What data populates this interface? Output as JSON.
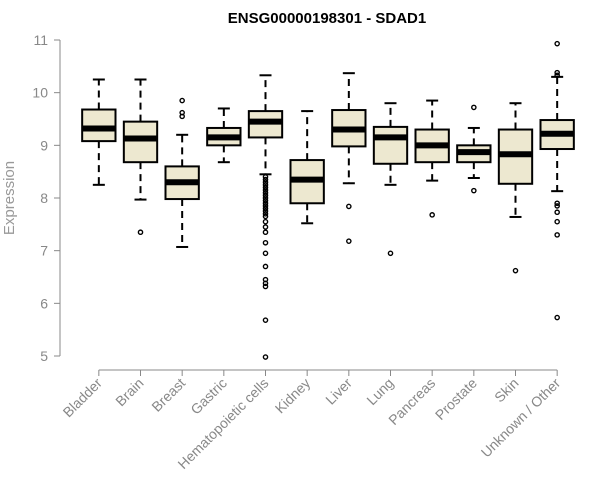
{
  "chart_data": {
    "type": "boxplot",
    "title": "ENSG00000198301 - SDAD1",
    "ylabel": "Expression",
    "xlabel": "",
    "ylim": [
      5,
      11
    ],
    "yticks": [
      5,
      6,
      7,
      8,
      9,
      10,
      11
    ],
    "grid": false,
    "box_fill": "#ede8d0",
    "box_stroke": "#000000",
    "axis_color": "#888888",
    "categories": [
      "Bladder",
      "Brain",
      "Breast",
      "Gastric",
      "Hematopoietic cells",
      "Kidney",
      "Liver",
      "Lung",
      "Pancreas",
      "Prostate",
      "Skin",
      "Unknown / Other"
    ],
    "boxes": [
      {
        "whisker_low": 8.25,
        "q1": 9.08,
        "median": 9.32,
        "q3": 9.68,
        "whisker_high": 10.25,
        "outliers": []
      },
      {
        "whisker_low": 7.97,
        "q1": 8.68,
        "median": 9.13,
        "q3": 9.45,
        "whisker_high": 10.25,
        "outliers": [
          7.35
        ]
      },
      {
        "whisker_low": 7.07,
        "q1": 7.98,
        "median": 8.3,
        "q3": 8.6,
        "whisker_high": 9.2,
        "outliers": [
          9.85,
          9.62,
          9.55
        ]
      },
      {
        "whisker_low": 8.68,
        "q1": 9.0,
        "median": 9.15,
        "q3": 9.33,
        "whisker_high": 9.7,
        "outliers": []
      },
      {
        "whisker_low": 8.45,
        "q1": 9.15,
        "median": 9.45,
        "q3": 9.65,
        "whisker_high": 10.33,
        "outliers": [
          8.4,
          8.35,
          8.3,
          8.25,
          8.2,
          8.15,
          8.1,
          8.05,
          8.0,
          7.95,
          7.9,
          7.85,
          7.8,
          7.75,
          7.7,
          7.65,
          7.55,
          7.45,
          7.35,
          7.15,
          6.95,
          6.7,
          6.45,
          6.38,
          6.32,
          5.68,
          4.98
        ]
      },
      {
        "whisker_low": 7.52,
        "q1": 7.9,
        "median": 8.35,
        "q3": 8.72,
        "whisker_high": 9.65,
        "outliers": []
      },
      {
        "whisker_low": 8.28,
        "q1": 8.98,
        "median": 9.3,
        "q3": 9.67,
        "whisker_high": 10.37,
        "outliers": [
          7.84,
          7.18
        ]
      },
      {
        "whisker_low": 8.25,
        "q1": 8.65,
        "median": 9.15,
        "q3": 9.35,
        "whisker_high": 9.8,
        "outliers": [
          6.95
        ]
      },
      {
        "whisker_low": 8.33,
        "q1": 8.68,
        "median": 9.0,
        "q3": 9.3,
        "whisker_high": 9.85,
        "outliers": [
          7.68
        ]
      },
      {
        "whisker_low": 8.38,
        "q1": 8.68,
        "median": 8.87,
        "q3": 9.0,
        "whisker_high": 9.33,
        "outliers": [
          9.72,
          8.14
        ]
      },
      {
        "whisker_low": 7.64,
        "q1": 8.27,
        "median": 8.83,
        "q3": 9.3,
        "whisker_high": 9.8,
        "outliers": [
          6.62
        ]
      },
      {
        "whisker_low": 8.13,
        "q1": 8.93,
        "median": 9.22,
        "q3": 9.48,
        "whisker_high": 10.3,
        "outliers": [
          10.93,
          10.38,
          10.33,
          7.9,
          7.85,
          7.73,
          7.55,
          7.3,
          5.73
        ]
      }
    ]
  }
}
